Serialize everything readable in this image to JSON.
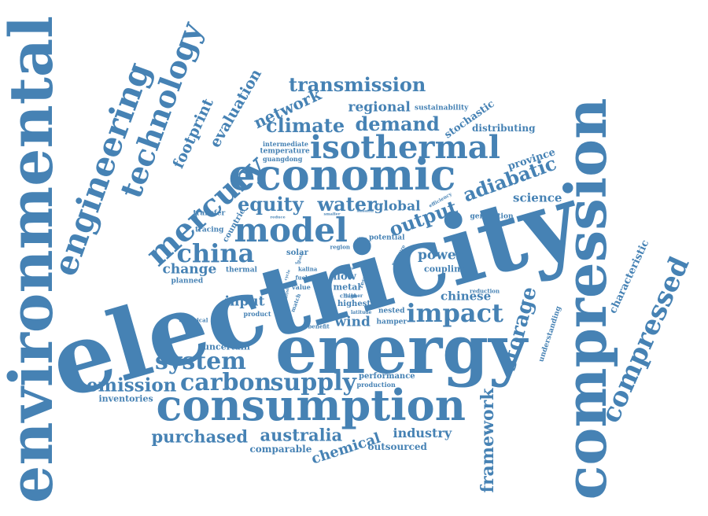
{
  "word_cloud": {
    "color": "#4682b4",
    "background": "#ffffff",
    "words": [
      "electricity",
      "energy",
      "consumption",
      "compression",
      "environmental",
      "economic",
      "isothermal",
      "engineering",
      "technology",
      "mercury",
      "model",
      "compressed",
      "china",
      "carbon",
      "supply",
      "system",
      "emission",
      "impact",
      "transmission",
      "australia",
      "purchased",
      "storage",
      "demand",
      "climate",
      "network",
      "equity",
      "water",
      "adiabatic",
      "output",
      "global",
      "framework",
      "footprint",
      "evaluation",
      "regional",
      "chinese",
      "wind",
      "input",
      "change",
      "power",
      "industry",
      "chemical",
      "province",
      "science",
      "characteristic",
      "stochastic",
      "distributing",
      "sustainability",
      "comparable",
      "outsourced",
      "inventories",
      "uncertain",
      "coupling",
      "flow",
      "metal",
      "highest",
      "solar",
      "nested",
      "hamper",
      "performance",
      "production",
      "potential",
      "generation",
      "countrie",
      "transfer",
      "tracing",
      "planned",
      "thermal",
      "electrical",
      "product",
      "benefit",
      "understanding",
      "reduction",
      "latitude",
      "guangdong",
      "temperature",
      "intermediate",
      "kalina",
      "value",
      "match",
      "fuel",
      "region",
      "higher",
      "efficiency",
      "smaller",
      "reduce",
      "shaanxi",
      "cases",
      "pressure",
      "chain",
      "result",
      "analysis",
      "cycle",
      "str",
      "total",
      "share"
    ]
  }
}
